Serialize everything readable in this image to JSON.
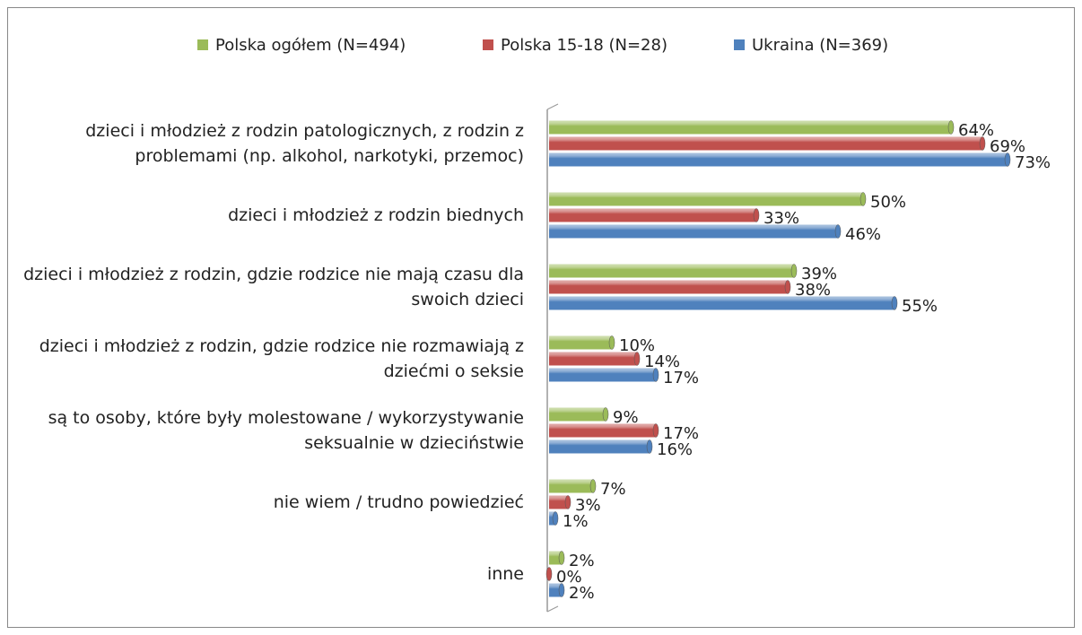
{
  "chart_data": {
    "type": "hbar",
    "categories": [
      "dzieci i młodzież z rodzin patologicznych, z rodzin z problemami (np. alkohol, narkotyki, przemoc)",
      "dzieci i młodzież z rodzin biednych",
      "dzieci i młodzież z rodzin, gdzie rodzice nie mają czasu dla swoich dzieci",
      "dzieci i młodzież z rodzin, gdzie rodzice nie rozmawiają z dziećmi o seksie",
      "są to osoby, które były molestowane / wykorzystywanie seksualnie w dzieciństwie",
      "nie wiem / trudno powiedzieć",
      "inne"
    ],
    "series": [
      {
        "name": "Polska ogółem (N=494)",
        "color": "#9bbb59",
        "values": [
          64,
          50,
          39,
          10,
          9,
          7,
          2
        ],
        "value_labels": [
          "64%",
          "50%",
          "39%",
          "10%",
          "9%",
          "7%",
          "2%"
        ]
      },
      {
        "name": "Polska 15-18 (N=28)",
        "color": "#c0504d",
        "values": [
          69,
          33,
          38,
          14,
          17,
          3,
          0
        ],
        "value_labels": [
          "69%",
          "33%",
          "38%",
          "14%",
          "17%",
          "3%",
          "0%"
        ]
      },
      {
        "name": "Ukraina (N=369)",
        "color": "#4f81bd",
        "values": [
          73,
          46,
          55,
          17,
          16,
          1,
          2
        ],
        "value_labels": [
          "73%",
          "46%",
          "55%",
          "17%",
          "16%",
          "1%",
          "2%"
        ]
      }
    ],
    "legend": "top"
  }
}
